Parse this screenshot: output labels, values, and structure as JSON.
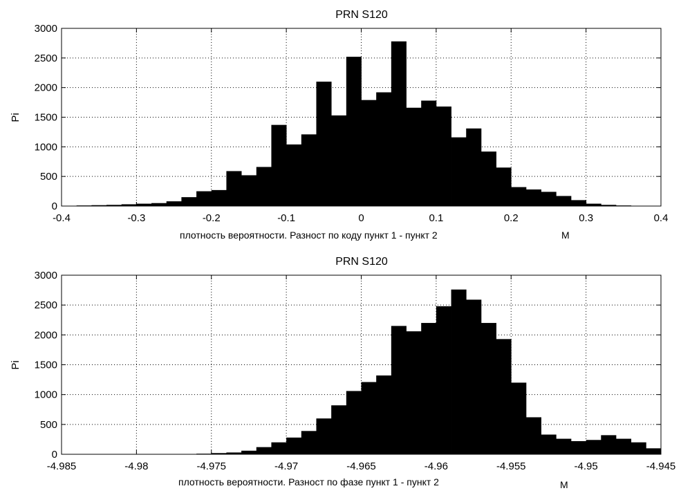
{
  "chart_data": [
    {
      "type": "bar",
      "title": "PRN S120",
      "xlabel": "плотность вероятности. Разност по коду  пункт 1 - пункт 2",
      "xunit": "M",
      "ylabel": "Pi",
      "xlim": [
        -0.4,
        0.4
      ],
      "ylim": [
        0,
        3000
      ],
      "xticks": [
        "-0.4",
        "-0.3",
        "-0.2",
        "-0.1",
        "0",
        "0.1",
        "0.2",
        "0.3",
        "0.4"
      ],
      "yticks": [
        "0",
        "500",
        "1000",
        "1500",
        "2000",
        "2500",
        "3000"
      ],
      "grid": true,
      "bin_width": 0.02,
      "bin_starts": [
        -0.38,
        -0.36,
        -0.34,
        -0.32,
        -0.3,
        -0.28,
        -0.26,
        -0.24,
        -0.22,
        -0.2,
        -0.18,
        -0.16,
        -0.14,
        -0.12,
        -0.1,
        -0.08,
        -0.06,
        -0.04,
        -0.02,
        0.0,
        0.02,
        0.04,
        0.06,
        0.08,
        0.1,
        0.12,
        0.14,
        0.16,
        0.18,
        0.2,
        0.22,
        0.24,
        0.26,
        0.28,
        0.3,
        0.32,
        0.34,
        0.36
      ],
      "values": [
        10,
        15,
        20,
        30,
        40,
        50,
        80,
        150,
        250,
        270,
        590,
        520,
        660,
        1370,
        1040,
        1210,
        2100,
        1530,
        2520,
        1790,
        1920,
        2780,
        1660,
        1780,
        1680,
        1160,
        1310,
        920,
        650,
        320,
        280,
        240,
        170,
        100,
        40,
        20,
        10,
        5
      ]
    },
    {
      "type": "bar",
      "title": "PRN S120",
      "xlabel": "плотность вероятности. Разност по фазе  пункт 1 - пункт 2",
      "xunit": "M",
      "ylabel": "Pi",
      "xlim": [
        -4.985,
        -4.945
      ],
      "ylim": [
        0,
        3000
      ],
      "xticks": [
        "-4.985",
        "-4.98",
        "-4.975",
        "-4.97",
        "-4.965",
        "-4.96",
        "-4.955",
        "-4.95",
        "-4.945"
      ],
      "yticks": [
        "0",
        "500",
        "1000",
        "1500",
        "2000",
        "2500",
        "3000"
      ],
      "grid": true,
      "bin_width": 0.001,
      "bin_starts": [
        -4.976,
        -4.975,
        -4.974,
        -4.973,
        -4.972,
        -4.971,
        -4.97,
        -4.969,
        -4.968,
        -4.967,
        -4.966,
        -4.965,
        -4.964,
        -4.963,
        -4.962,
        -4.961,
        -4.96,
        -4.959,
        -4.958,
        -4.957,
        -4.956,
        -4.955,
        -4.954,
        -4.953,
        -4.952,
        -4.951,
        -4.95,
        -4.949,
        -4.948,
        -4.947,
        -4.946
      ],
      "values": [
        10,
        20,
        30,
        60,
        120,
        200,
        280,
        390,
        600,
        820,
        1060,
        1210,
        1320,
        2150,
        2060,
        2200,
        2480,
        2760,
        2590,
        2200,
        1930,
        1200,
        620,
        330,
        260,
        220,
        240,
        320,
        260,
        200,
        100
      ]
    }
  ]
}
